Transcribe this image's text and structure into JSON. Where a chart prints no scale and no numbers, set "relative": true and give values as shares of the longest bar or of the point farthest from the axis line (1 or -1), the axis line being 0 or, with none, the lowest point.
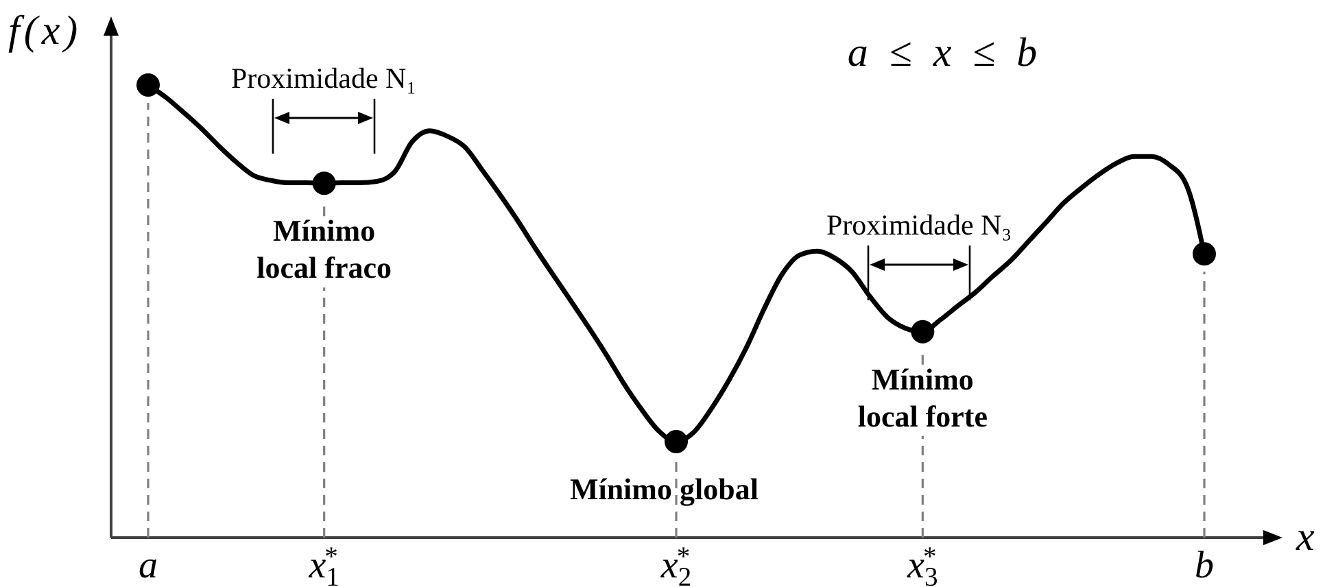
{
  "chart_data": {
    "type": "line",
    "relative": true,
    "xlabel": "x",
    "ylabel": "f(x)",
    "categories": [
      "a",
      null,
      null,
      null,
      null,
      null,
      null,
      null,
      null,
      null,
      "x$_{1}$$^{*}$",
      null,
      null,
      null,
      null,
      null,
      null,
      null,
      null,
      null,
      null,
      null,
      null,
      null,
      null,
      null,
      null,
      null,
      null,
      null,
      "x$_{2}$$^{*}$",
      null,
      null,
      null,
      null,
      null,
      null,
      null,
      null,
      null,
      null,
      null,
      null,
      null,
      "x$_{3}$$^{*}$",
      null,
      null,
      null,
      null,
      null,
      null,
      null,
      null,
      null,
      null,
      null,
      null,
      null,
      null,
      null,
      "b"
    ],
    "series": [
      {
        "color": "#000000",
        "values": [
          1.0,
          0.973,
          0.94,
          0.905,
          0.866,
          0.83,
          0.8,
          0.789,
          0.784,
          0.784,
          0.783,
          0.784,
          0.784,
          0.787,
          0.808,
          0.875,
          0.899,
          0.887,
          0.863,
          0.811,
          0.757,
          0.7,
          0.639,
          0.581,
          0.524,
          0.466,
          0.406,
          0.342,
          0.285,
          0.236,
          0.212,
          0.233,
          0.285,
          0.348,
          0.421,
          0.506,
          0.581,
          0.624,
          0.633,
          0.618,
          0.587,
          0.533,
          0.487,
          0.463,
          0.455,
          0.481,
          0.512,
          0.542,
          0.578,
          0.612,
          0.654,
          0.696,
          0.739,
          0.772,
          0.802,
          0.827,
          0.842,
          0.842,
          0.824,
          0.778,
          0.627
        ]
      },
      {
        "type": "scatter",
        "color": "#000000",
        "x": [
          "a",
          "x$_{1}$$^{*}$",
          "x$_{2}$$^{*}$",
          "x$_{3}$$^{*}$",
          "b"
        ],
        "values": [
          1.0,
          0.783,
          0.212,
          0.455,
          0.627
        ]
      }
    ],
    "ref_lines": [
      {
        "axis": "x",
        "value": "a",
        "line_style": "dashed",
        "color": "#808080"
      },
      {
        "axis": "x",
        "value": "x$_{1}$$^{*}$",
        "line_style": "dashed",
        "color": "#808080"
      },
      {
        "axis": "x",
        "value": "x$_{2}$$^{*}$",
        "line_style": "dashed",
        "color": "#808080"
      },
      {
        "axis": "x",
        "value": "x$_{3}$$^{*}$",
        "line_style": "dashed",
        "color": "#808080"
      },
      {
        "axis": "x",
        "value": "b",
        "line_style": "dashed",
        "color": "#808080"
      }
    ],
    "annotations": [
      "a ≤ x ≤ b",
      "Proximidade N₁",
      {
        "text": "Mínimo\nlocal fraco",
        "x": "x$_{1}$$^{*}$"
      },
      {
        "text": "Mínimo global",
        "x": "x$_{2}$$^{*}$"
      },
      "Proximidade N₃",
      {
        "text": "Mínimo\nlocal forte",
        "x": "x$_{3}$$^{*}$"
      }
    ]
  }
}
